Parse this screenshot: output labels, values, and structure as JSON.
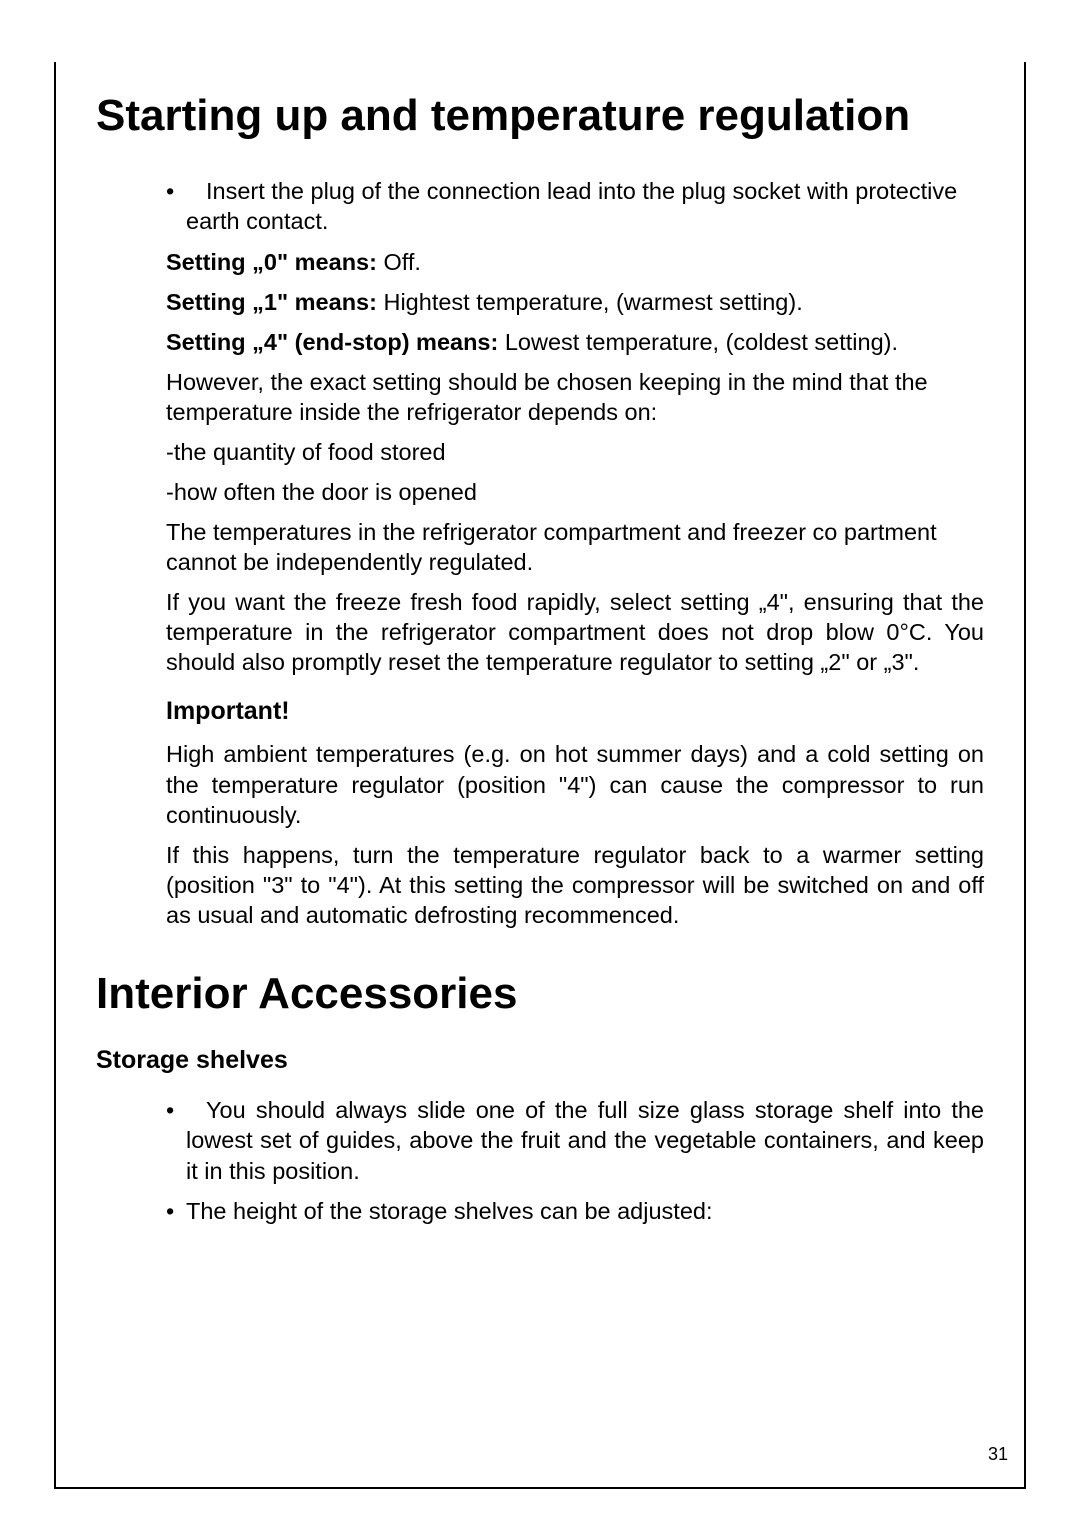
{
  "page_number": "31",
  "sections": [
    {
      "heading": "Starting up and temperature regulation",
      "blocks": [
        {
          "type": "bullet",
          "text": "Insert the plug of the connection lead into the plug socket with protective earth contact."
        },
        {
          "type": "line",
          "bold_prefix": "Setting „0\" means:",
          "rest": " Off."
        },
        {
          "type": "line",
          "bold_prefix": "Setting „1\" means:",
          "rest": " Hightest temperature, (warmest setting)."
        },
        {
          "type": "line_just",
          "bold_prefix": "Setting „4\" (end-stop) means:",
          "rest": " Lowest temperature, (coldest setting)."
        },
        {
          "type": "para",
          "text": "However, the exact setting should be chosen keeping in the mind that the temperature inside the refrigerator depends on:"
        },
        {
          "type": "para",
          "text": "-the quantity of food stored"
        },
        {
          "type": "para",
          "text": "-how often the door is opened"
        },
        {
          "type": "para",
          "text": "The temperatures in the refrigerator compartment and freezer co partment cannot be independently regulated."
        },
        {
          "type": "para_just",
          "text": "If you want the freeze fresh food rapidly, select setting „4\", ensuring that the temperature in the refrigerator compartment does not drop blow 0°C. You should also promptly reset the temperature regulator to setting „2\" or „3\"."
        },
        {
          "type": "subheading",
          "text": "Important!"
        },
        {
          "type": "para_just",
          "text": "High ambient temperatures (e.g. on hot summer days) and a cold setting on the temperature regulator (position \"4\") can cause the compressor to run continuously."
        },
        {
          "type": "para",
          "text": "If this happens, turn the temperature regulator back to a warmer setting (position \"3\" to \"4\"). At this setting the compressor will be switched on and off as usual and automatic defrosting recommenced."
        }
      ]
    },
    {
      "heading": "Interior Accessories",
      "subheading": "Storage shelves",
      "blocks": [
        {
          "type": "bullet_just",
          "text": "You should always slide one of the full size glass storage shelf into the lowest set of guides, above the fruit and the vegetable containers, and keep it in this position."
        },
        {
          "type": "bullet",
          "text": "The height of the storage shelves can be adjusted:"
        }
      ]
    }
  ]
}
